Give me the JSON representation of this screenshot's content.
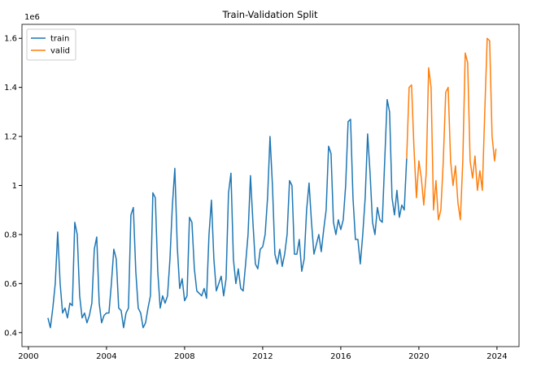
{
  "chart_data": {
    "type": "line",
    "title": "Train-Validation Split",
    "y_offset_label": "1e6",
    "xlim": [
      1999.67,
      2025.13
    ],
    "ylim": [
      0.343,
      1.657
    ],
    "xticks": [
      2000,
      2004,
      2008,
      2012,
      2016,
      2020,
      2024
    ],
    "yticks": [
      0.4,
      0.6,
      0.8,
      1.0,
      1.2,
      1.4,
      1.6
    ],
    "grid": false,
    "legend": "upper-left",
    "series": [
      {
        "name": "train",
        "color": "#1f77b4",
        "x": [
          2001,
          2001.125,
          2001.25,
          2001.375,
          2001.5,
          2001.625,
          2001.75,
          2001.875,
          2002,
          2002.125,
          2002.25,
          2002.375,
          2002.5,
          2002.625,
          2002.75,
          2002.875,
          2003,
          2003.125,
          2003.25,
          2003.375,
          2003.5,
          2003.625,
          2003.75,
          2003.875,
          2004,
          2004.125,
          2004.25,
          2004.375,
          2004.5,
          2004.625,
          2004.75,
          2004.875,
          2005,
          2005.125,
          2005.25,
          2005.375,
          2005.5,
          2005.625,
          2005.75,
          2005.875,
          2006,
          2006.125,
          2006.25,
          2006.375,
          2006.5,
          2006.625,
          2006.75,
          2006.875,
          2007,
          2007.125,
          2007.25,
          2007.375,
          2007.5,
          2007.625,
          2007.75,
          2007.875,
          2008,
          2008.125,
          2008.25,
          2008.375,
          2008.5,
          2008.625,
          2008.75,
          2008.875,
          2009,
          2009.125,
          2009.25,
          2009.375,
          2009.5,
          2009.625,
          2009.75,
          2009.875,
          2010,
          2010.125,
          2010.25,
          2010.375,
          2010.5,
          2010.625,
          2010.75,
          2010.875,
          2011,
          2011.125,
          2011.25,
          2011.375,
          2011.5,
          2011.625,
          2011.75,
          2011.875,
          2012,
          2012.125,
          2012.25,
          2012.375,
          2012.5,
          2012.625,
          2012.75,
          2012.875,
          2013,
          2013.125,
          2013.25,
          2013.375,
          2013.5,
          2013.625,
          2013.75,
          2013.875,
          2014,
          2014.125,
          2014.25,
          2014.375,
          2014.5,
          2014.625,
          2014.75,
          2014.875,
          2015,
          2015.125,
          2015.25,
          2015.375,
          2015.5,
          2015.625,
          2015.75,
          2015.875,
          2016,
          2016.125,
          2016.25,
          2016.375,
          2016.5,
          2016.625,
          2016.75,
          2016.875,
          2017,
          2017.125,
          2017.25,
          2017.375,
          2017.5,
          2017.625,
          2017.75,
          2017.875,
          2018,
          2018.125,
          2018.25,
          2018.375,
          2018.5,
          2018.625,
          2018.75,
          2018.875,
          2019,
          2019.125,
          2019.25,
          2019.375
        ],
        "values": [
          0.46,
          0.42,
          0.5,
          0.6,
          0.81,
          0.6,
          0.48,
          0.5,
          0.46,
          0.52,
          0.51,
          0.85,
          0.8,
          0.55,
          0.46,
          0.48,
          0.44,
          0.47,
          0.52,
          0.74,
          0.79,
          0.52,
          0.44,
          0.47,
          0.48,
          0.48,
          0.6,
          0.74,
          0.7,
          0.5,
          0.49,
          0.42,
          0.48,
          0.5,
          0.88,
          0.91,
          0.65,
          0.5,
          0.48,
          0.42,
          0.44,
          0.5,
          0.55,
          0.97,
          0.95,
          0.65,
          0.5,
          0.55,
          0.52,
          0.55,
          0.7,
          0.92,
          1.07,
          0.75,
          0.58,
          0.62,
          0.53,
          0.55,
          0.87,
          0.85,
          0.66,
          0.57,
          0.56,
          0.55,
          0.58,
          0.54,
          0.8,
          0.94,
          0.7,
          0.57,
          0.6,
          0.63,
          0.55,
          0.62,
          0.97,
          1.05,
          0.7,
          0.6,
          0.66,
          0.58,
          0.57,
          0.68,
          0.8,
          1.04,
          0.85,
          0.68,
          0.66,
          0.74,
          0.75,
          0.8,
          0.95,
          1.2,
          1.0,
          0.72,
          0.68,
          0.74,
          0.67,
          0.72,
          0.8,
          1.02,
          1.0,
          0.72,
          0.72,
          0.78,
          0.65,
          0.7,
          0.9,
          1.01,
          0.85,
          0.72,
          0.76,
          0.8,
          0.73,
          0.82,
          0.9,
          1.16,
          1.13,
          0.85,
          0.8,
          0.86,
          0.82,
          0.86,
          1.0,
          1.26,
          1.27,
          0.95,
          0.78,
          0.78,
          0.68,
          0.8,
          0.95,
          1.21,
          1.05,
          0.85,
          0.8,
          0.91,
          0.86,
          0.85,
          1.1,
          1.35,
          1.3,
          0.95,
          0.88,
          0.98,
          0.87,
          0.92,
          0.9,
          1.11
        ]
      },
      {
        "name": "valid",
        "color": "#ff7f0e",
        "x": [
          2019.375,
          2019.5,
          2019.625,
          2019.75,
          2019.875,
          2020,
          2020.125,
          2020.25,
          2020.375,
          2020.5,
          2020.625,
          2020.75,
          2020.875,
          2021,
          2021.125,
          2021.25,
          2021.375,
          2021.5,
          2021.625,
          2021.75,
          2021.875,
          2022,
          2022.125,
          2022.25,
          2022.375,
          2022.5,
          2022.625,
          2022.75,
          2022.875,
          2023,
          2023.125,
          2023.25,
          2023.375,
          2023.5,
          2023.625,
          2023.75,
          2023.875,
          2023.95
        ],
        "values": [
          1.11,
          1.4,
          1.41,
          1.15,
          0.95,
          1.1,
          1.03,
          0.92,
          1.05,
          1.48,
          1.4,
          0.9,
          1.02,
          0.86,
          0.9,
          1.1,
          1.38,
          1.4,
          1.1,
          1.0,
          1.08,
          0.93,
          0.86,
          1.1,
          1.54,
          1.5,
          1.1,
          1.03,
          1.12,
          0.98,
          1.06,
          0.98,
          1.3,
          1.6,
          1.59,
          1.2,
          1.1,
          1.15
        ]
      }
    ]
  }
}
